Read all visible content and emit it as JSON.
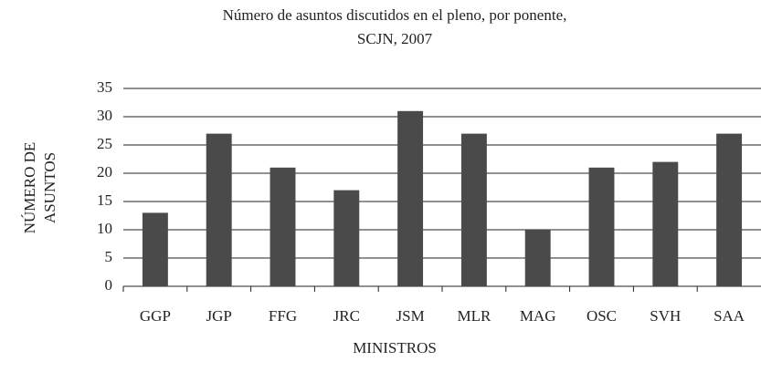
{
  "chart_data": {
    "type": "bar",
    "title": [
      "Número de asuntos discutidos en el pleno, por ponente,",
      "SCJN, 2007"
    ],
    "y_label": [
      "NÚMERO DE",
      "ASUNTOS"
    ],
    "x_label": "MINISTROS",
    "categories": [
      "GGP",
      "JGP",
      "FFG",
      "JRC",
      "JSM",
      "MLR",
      "MAG",
      "OSC",
      "SVH",
      "SAA"
    ],
    "values": [
      13,
      27,
      21,
      17,
      31,
      27,
      10,
      21,
      22,
      27
    ],
    "color": "#4a4a4a",
    "ylim": [
      0,
      35
    ],
    "yticks": [
      0,
      5,
      10,
      15,
      20,
      25,
      30,
      35
    ],
    "grid": true
  }
}
